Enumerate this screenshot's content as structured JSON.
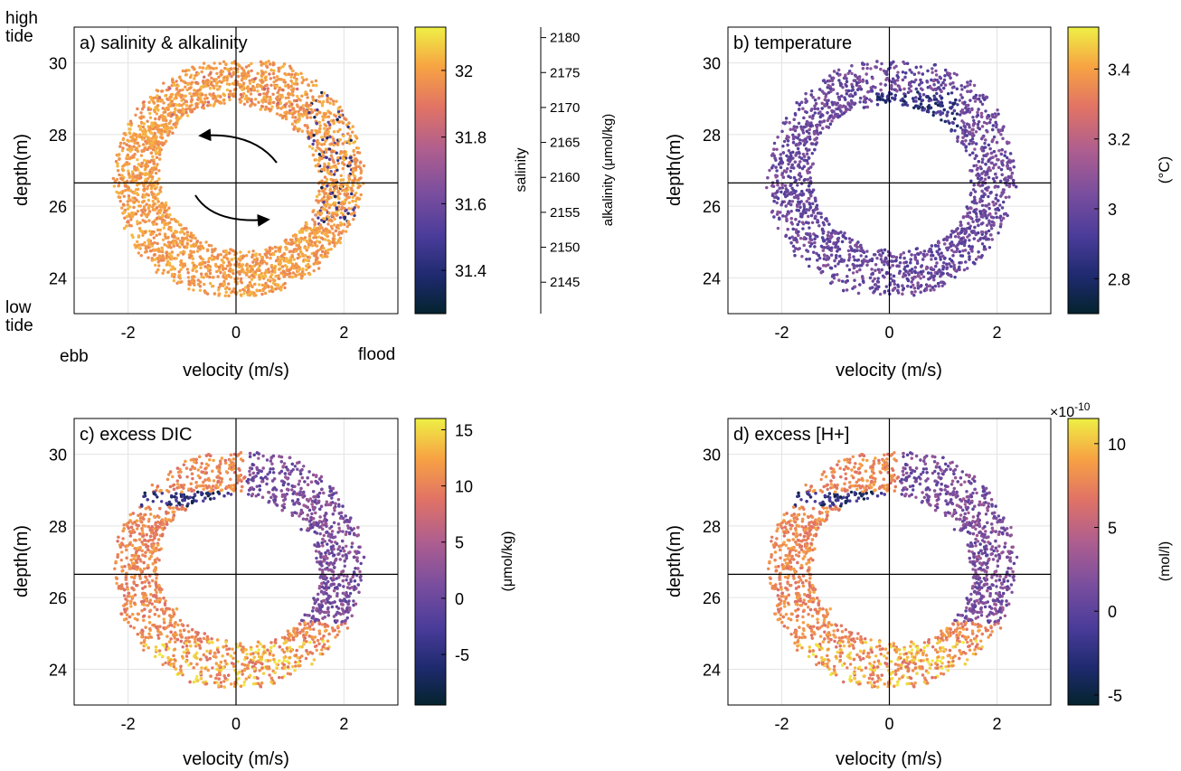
{
  "chart_data": [
    {
      "type": "scatter",
      "panel": "a",
      "title": "a) salinity & alkalinity",
      "xlabel": "velocity (m/s)",
      "ylabel": "depth(m)",
      "xlim": [
        -3,
        3
      ],
      "ylim": [
        23,
        31
      ],
      "xticks": [
        -2,
        0,
        2
      ],
      "yticks": [
        24,
        26,
        28,
        30
      ],
      "grid": true,
      "reference_lines": {
        "x": 0,
        "y": 26.65
      },
      "corner_labels": {
        "high_tide": "high\ntide",
        "low_tide": "low\ntide",
        "ebb": "ebb",
        "flood": "flood"
      },
      "arrows": [
        "counter-clockwise upper arrow",
        "lower arrow toward flood"
      ],
      "loop": {
        "center_velocity": 0.05,
        "center_depth": 26.8,
        "outer_velocity_half_width": 2.45,
        "inner_velocity_half_width": 1.6,
        "outer_depth_half_height": 3.3,
        "inner_depth_half_height": 2.0,
        "tilt": "upper-left to lower-right"
      },
      "colorbar": {
        "label": "salinity",
        "ticks": [
          31.4,
          31.6,
          31.8,
          32
        ],
        "range": [
          31.27,
          32.13
        ],
        "colormap": "thermal",
        "secondary_axis": {
          "label": "alkalinity (μmol/kg)",
          "ticks": [
            2145,
            2150,
            2155,
            2160,
            2165,
            2170,
            2175,
            2180
          ],
          "range": [
            2140.5,
            2181.5
          ]
        }
      },
      "typical_value": 31.95,
      "low_value_region": "scattered dark points around velocity 1.5–2 m/s, depth 26–29 m"
    },
    {
      "type": "scatter",
      "panel": "b",
      "title": "b) temperature",
      "xlabel": "velocity (m/s)",
      "ylabel": "depth(m)",
      "xlim": [
        -3,
        3
      ],
      "ylim": [
        23,
        31
      ],
      "xticks": [
        -2,
        0,
        2
      ],
      "yticks": [
        24,
        26,
        28,
        30
      ],
      "grid": true,
      "reference_lines": {
        "x": 0,
        "y": 26.65
      },
      "colorbar": {
        "label": "(°C)",
        "ticks": [
          2.8,
          3,
          3.2,
          3.4
        ],
        "range": [
          2.7,
          3.52
        ],
        "colormap": "thermal"
      },
      "typical_value": 3.0,
      "low_value_region": "dark band near velocity 0–1 m/s, depth 28.3–29 m"
    },
    {
      "type": "scatter",
      "panel": "c",
      "title": "c) excess DIC",
      "xlabel": "velocity (m/s)",
      "ylabel": "depth(m)",
      "xlim": [
        -3,
        3
      ],
      "ylim": [
        23,
        31
      ],
      "xticks": [
        -2,
        0,
        2
      ],
      "yticks": [
        24,
        26,
        28,
        30
      ],
      "grid": true,
      "reference_lines": {
        "x": 0,
        "y": 26.65
      },
      "colorbar": {
        "label": "(μmol/kg)",
        "ticks": [
          -5,
          0,
          5,
          10,
          15
        ],
        "range": [
          -9.5,
          16
        ],
        "colormap": "thermal"
      },
      "typical_value": 11,
      "low_value_region": "dark band near velocity -1.5 to 0 m/s, depth 28.6–28.9 m; purple on upper-right of loop"
    },
    {
      "type": "scatter",
      "panel": "d",
      "title": "d) excess [H+]",
      "xlabel": "velocity (m/s)",
      "ylabel": "depth(m)",
      "xlim": [
        -3,
        3
      ],
      "ylim": [
        23,
        31
      ],
      "xticks": [
        -2,
        0,
        2
      ],
      "yticks": [
        24,
        26,
        28,
        30
      ],
      "grid": true,
      "reference_lines": {
        "x": 0,
        "y": 26.65
      },
      "colorbar": {
        "label": "(mol/l)",
        "ticks": [
          -5,
          0,
          5,
          10
        ],
        "range": [
          -5.6,
          11.5
        ],
        "colormap": "thermal",
        "exponent_label": "×10",
        "exponent_power": "-10"
      },
      "typical_value": 8,
      "low_value_region": "dark band near velocity -1.5 to 0 m/s, depth 28.6–28.9 m; purple on upper-right of loop"
    }
  ]
}
